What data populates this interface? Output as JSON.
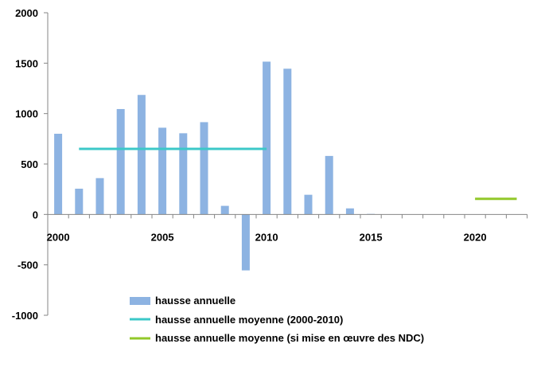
{
  "chart_data": {
    "type": "bar",
    "title": "",
    "xlabel": "",
    "ylabel": "",
    "ylim": [
      -1000,
      2000
    ],
    "yticks": [
      -1000,
      -500,
      0,
      500,
      1000,
      1500,
      2000
    ],
    "xlim": [
      2000,
      2022
    ],
    "xticks": [
      2000,
      2005,
      2010,
      2015,
      2020
    ],
    "grid": false,
    "legend_placement": "bottom",
    "bar_series": {
      "name": "hausse annuelle",
      "color": "#8db3e2",
      "x": [
        2000,
        2001,
        2002,
        2003,
        2004,
        2005,
        2006,
        2007,
        2008,
        2009,
        2010,
        2011,
        2012,
        2013,
        2014,
        2015
      ],
      "values": [
        800,
        255,
        360,
        1045,
        1185,
        860,
        805,
        915,
        85,
        -555,
        1515,
        1445,
        195,
        580,
        60,
        5
      ]
    },
    "line_series": [
      {
        "name": "hausse annuelle moyenne (2000-2010)",
        "color": "#3cc8c8",
        "x": [
          2001,
          2010
        ],
        "values": [
          650,
          650
        ]
      },
      {
        "name": "hausse annuelle moyenne (si mise en œuvre des NDC)",
        "color": "#92c82a",
        "x": [
          2020,
          2022
        ],
        "values": [
          155,
          155
        ]
      }
    ]
  }
}
